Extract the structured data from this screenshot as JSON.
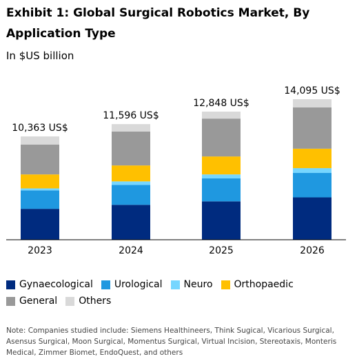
{
  "title": "Exhibit 1: Global Surgical Robotics Market, By Application Type",
  "subtitle": "In $US billion",
  "note": "Note: Companies studied include: Siemens Healthineers, Think Sugical, Vicarious Surgical, Asensus Surgical, Moon Surgical, Momentus Surgical, Virtual Incision, Stereotaxis, Monteris Medical, Zimmer Biomet, EndoQuest, and others",
  "colors": {
    "Gynaecological": "#002b7f",
    "Urological": "#1f98e0",
    "Neuro": "#76d6ff",
    "Orthopaedic": "#ffc000",
    "General": "#999999",
    "Others": "#d9d9d9"
  },
  "chart_data": {
    "type": "bar",
    "stacked": true,
    "categories": [
      "2023",
      "2024",
      "2025",
      "2026"
    ],
    "totals_labels": [
      "10,363 US$",
      "11,596 US$",
      "12,848 US$",
      "14,095 US$"
    ],
    "totals": [
      10363,
      11596,
      12848,
      14095
    ],
    "series": [
      {
        "name": "Gynaecological",
        "values": [
          3100,
          3500,
          3850,
          4250
        ]
      },
      {
        "name": "Urological",
        "values": [
          1850,
          2000,
          2300,
          2450
        ]
      },
      {
        "name": "Neuro",
        "values": [
          200,
          350,
          400,
          480
        ]
      },
      {
        "name": "Orthopaedic",
        "values": [
          1400,
          1600,
          1800,
          1950
        ]
      },
      {
        "name": "General",
        "values": [
          3000,
          3400,
          3800,
          4150
        ]
      },
      {
        "name": "Others",
        "values": [
          813,
          746,
          698,
          815
        ]
      }
    ],
    "ylim": [
      0,
      15000
    ],
    "grid": false,
    "legend_position": "bottom"
  }
}
